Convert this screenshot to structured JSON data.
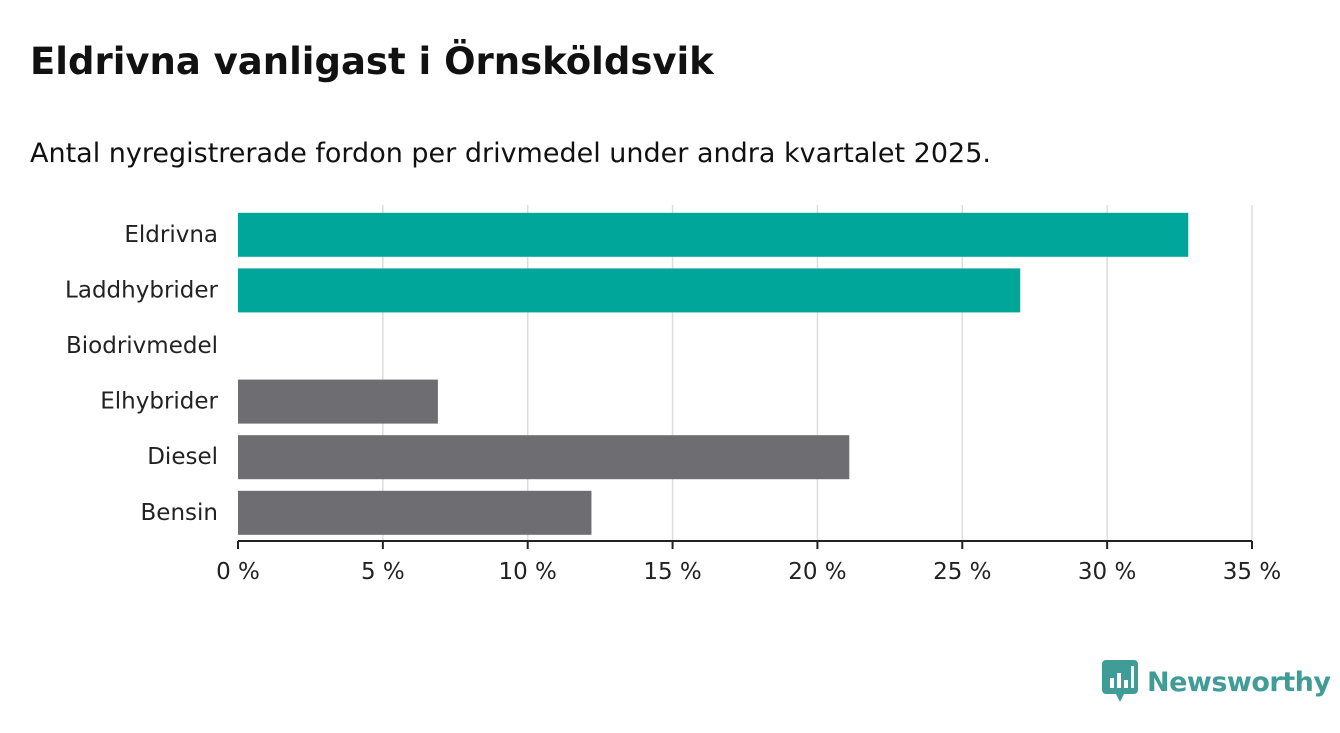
{
  "title": "Eldrivna vanligast i Örnsköldsvik",
  "subtitle": "Antal nyregistrerade fordon per drivmedel under andra kvartalet 2025.",
  "brand": {
    "name": "Newsworthy",
    "icon": "bar-chart-speech-bubble-icon",
    "color": "#3f9c96"
  },
  "colors": {
    "highlight": "#00a69a",
    "default": "#6e6d72",
    "grid": "#dddddd",
    "axis": "#222222"
  },
  "chart_data": {
    "type": "bar",
    "orientation": "horizontal",
    "categories": [
      "Eldrivna",
      "Laddhybrider",
      "Biodrivmedel",
      "Elhybrider",
      "Diesel",
      "Bensin"
    ],
    "values": [
      32.8,
      27.0,
      0,
      6.9,
      21.1,
      12.2
    ],
    "highlighted": [
      true,
      true,
      false,
      false,
      false,
      false
    ],
    "xlim": [
      0,
      35
    ],
    "xticks": [
      0,
      5,
      10,
      15,
      20,
      25,
      30,
      35
    ],
    "xtick_labels": [
      "0 %",
      "5 %",
      "10 %",
      "15 %",
      "20 %",
      "25 %",
      "30 %",
      "35 %"
    ],
    "xlabel": "",
    "ylabel": "",
    "grid": "vertical",
    "legend": "none"
  }
}
